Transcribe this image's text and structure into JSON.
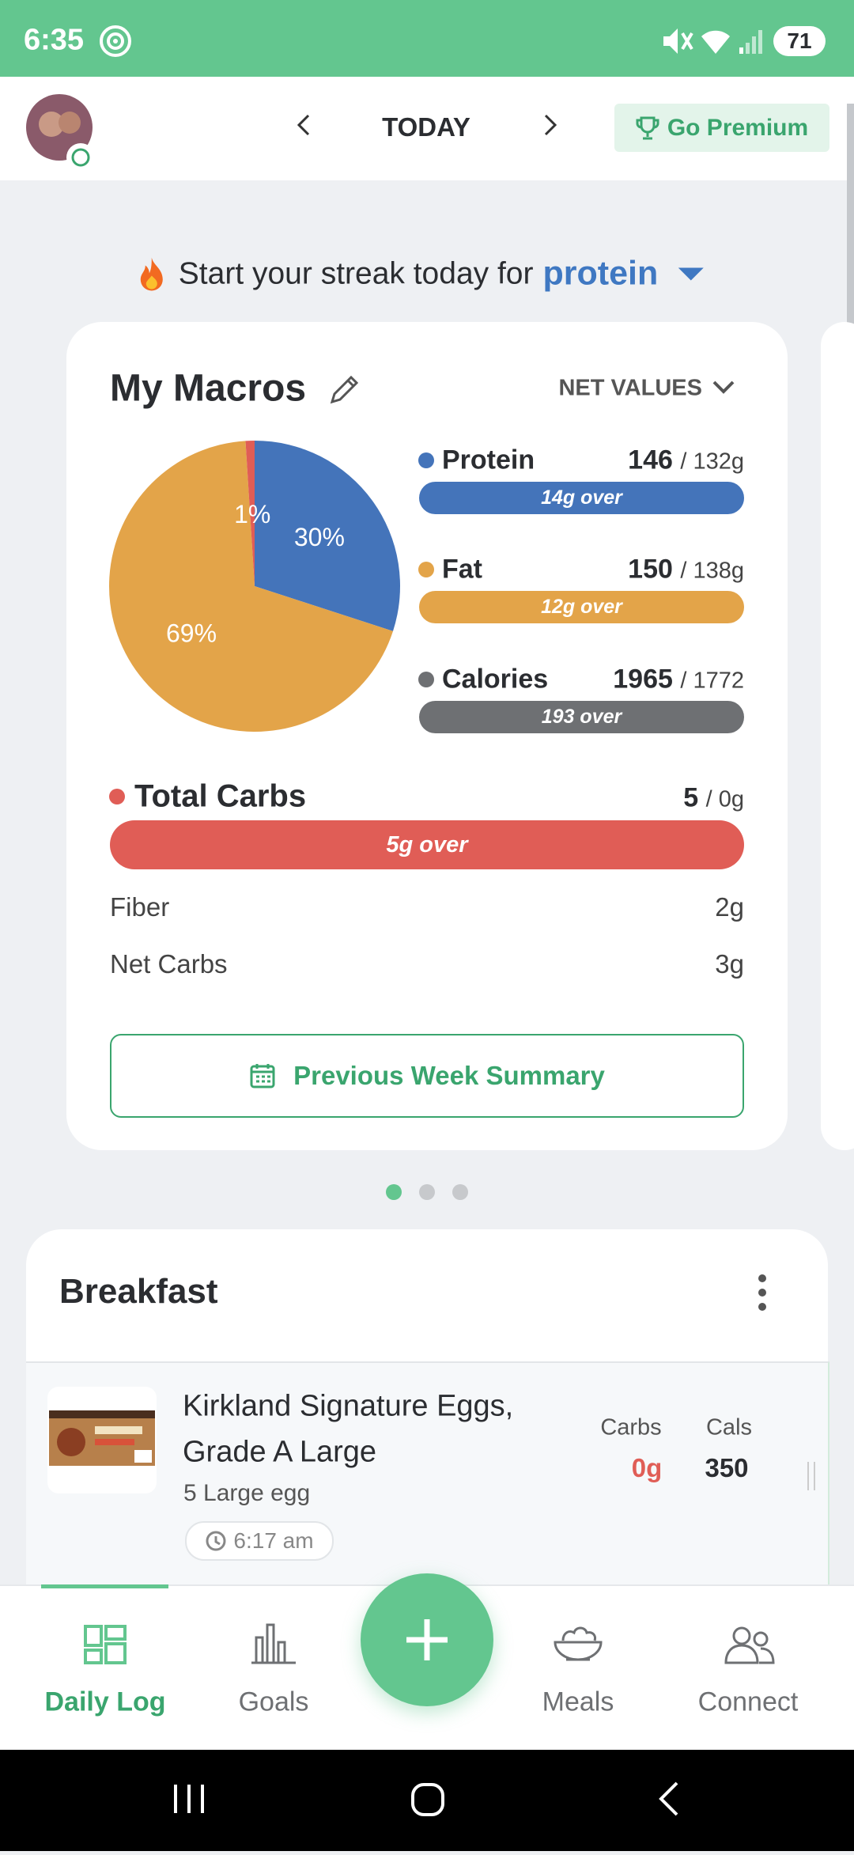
{
  "status_bar": {
    "time": "6:35",
    "battery": "71"
  },
  "header": {
    "date": "TODAY",
    "premium": "Go Premium"
  },
  "streak": {
    "text": "Start your streak today for",
    "nutrient": "protein"
  },
  "macros": {
    "title": "My Macros",
    "mode": "NET VALUES",
    "pie": {
      "values": [
        30,
        69,
        1
      ],
      "value_labels": [
        "30%",
        "69%",
        "1%"
      ],
      "colors": [
        "#4474ba",
        "#e3a449",
        "#e05d56"
      ]
    },
    "rows": [
      {
        "name": "Protein",
        "amount": 146,
        "target": "/ 132g",
        "status": "14g over",
        "color": "#4474ba"
      },
      {
        "name": "Fat",
        "amount": 150,
        "target": "/ 138g",
        "status": "12g over",
        "color": "#e3a449"
      },
      {
        "name": "Calories",
        "amount": 1965,
        "target": "/ 1772",
        "status": "193 over",
        "color": "#6e7073"
      }
    ],
    "carbs": {
      "name": "Total Carbs",
      "amount": 5,
      "target": "/ 0g",
      "status": "5g over",
      "color": "#e05d56"
    },
    "details": [
      {
        "name": "Fiber",
        "value": "2g"
      },
      {
        "name": "Net Carbs",
        "value": "3g"
      }
    ],
    "summary_button": "Previous Week Summary"
  },
  "meal": {
    "title": "Breakfast",
    "items": [
      {
        "name_lines": [
          "Kirkland Signature Eggs,",
          "Grade A Large"
        ],
        "serving": "5 Large egg",
        "time": "6:17 am",
        "carbs_label": "Carbs",
        "carbs": "0g",
        "cals_label": "Cals",
        "cals": "350"
      }
    ]
  },
  "nav": {
    "items": [
      "Daily Log",
      "Goals",
      "Meals",
      "Connect"
    ],
    "active": 0
  }
}
